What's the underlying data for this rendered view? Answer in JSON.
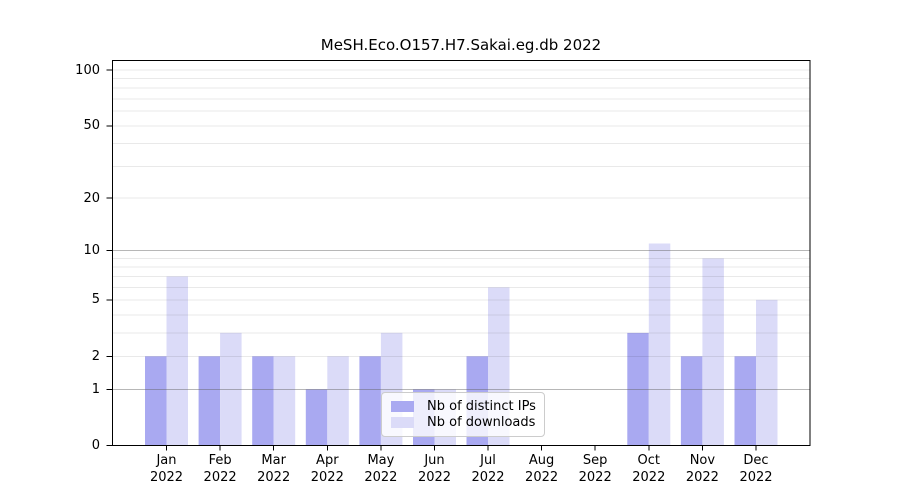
{
  "title": "MeSH.Eco.O157.H7.Sakai.eg.db 2022",
  "chart_data": {
    "type": "bar",
    "title": "MeSH.Eco.O157.H7.Sakai.eg.db 2022",
    "categories": [
      "Jan 2022",
      "Feb 2022",
      "Mar 2022",
      "Apr 2022",
      "May 2022",
      "Jun 2022",
      "Jul 2022",
      "Aug 2022",
      "Sep 2022",
      "Oct 2022",
      "Nov 2022",
      "Dec 2022"
    ],
    "series": [
      {
        "name": "Nb of distinct IPs",
        "color": "#a9a9f1",
        "values": [
          2,
          2,
          2,
          1,
          2,
          1,
          2,
          0,
          0,
          3,
          2,
          2
        ]
      },
      {
        "name": "Nb of downloads",
        "color": "#dbdbf8",
        "values": [
          7,
          3,
          2,
          2,
          3,
          1,
          6,
          0,
          0,
          11,
          9,
          5
        ]
      }
    ],
    "xlabel": "",
    "ylabel": "",
    "yscale": "log1p",
    "yticks": [
      0,
      1,
      2,
      5,
      10,
      20,
      50,
      100
    ],
    "ylim": [
      0,
      113
    ],
    "grid": "on",
    "legend_position": "inside-bottom-center"
  },
  "colors": {
    "ips_bar": "#a9a9f1",
    "downloads_bar": "#dbdbf8",
    "major_gridline": "#bcbcbc",
    "minor_gridline": "#e9e9e9",
    "axis": "#000000"
  }
}
